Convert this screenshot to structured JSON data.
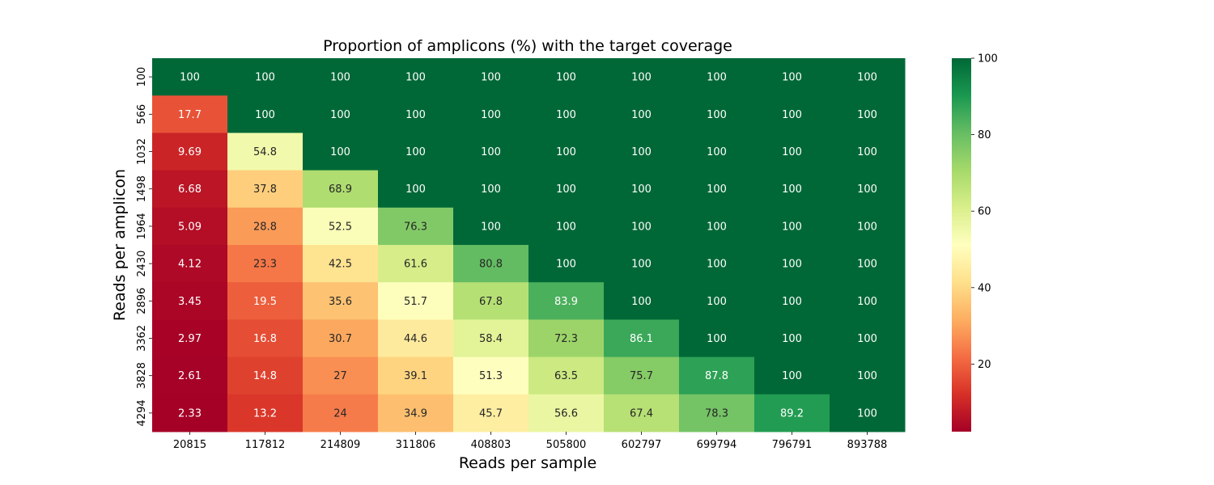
{
  "chart_data": {
    "type": "heatmap",
    "title": "Proportion of amplicons (%) with the target coverage",
    "xlabel": "Reads per sample",
    "ylabel": "Reads per amplicon",
    "x_categories": [
      "20815",
      "117812",
      "214809",
      "311806",
      "408803",
      "505800",
      "602797",
      "699794",
      "796791",
      "893788"
    ],
    "y_categories": [
      "100",
      "566",
      "1032",
      "1498",
      "1964",
      "2430",
      "2896",
      "3362",
      "3828",
      "4294"
    ],
    "values": [
      [
        100,
        100,
        100,
        100,
        100,
        100,
        100,
        100,
        100,
        100
      ],
      [
        17.7,
        100,
        100,
        100,
        100,
        100,
        100,
        100,
        100,
        100
      ],
      [
        9.69,
        54.8,
        100,
        100,
        100,
        100,
        100,
        100,
        100,
        100
      ],
      [
        6.68,
        37.8,
        68.9,
        100,
        100,
        100,
        100,
        100,
        100,
        100
      ],
      [
        5.09,
        28.8,
        52.5,
        76.3,
        100,
        100,
        100,
        100,
        100,
        100
      ],
      [
        4.12,
        23.3,
        42.5,
        61.6,
        80.8,
        100,
        100,
        100,
        100,
        100
      ],
      [
        3.45,
        19.5,
        35.6,
        51.7,
        67.8,
        83.9,
        100,
        100,
        100,
        100
      ],
      [
        2.97,
        16.8,
        30.7,
        44.6,
        58.4,
        72.3,
        86.1,
        100,
        100,
        100
      ],
      [
        2.61,
        14.8,
        27,
        39.1,
        51.3,
        63.5,
        75.7,
        87.8,
        100,
        100
      ],
      [
        2.33,
        13.2,
        24,
        34.9,
        45.7,
        56.6,
        67.4,
        78.3,
        89.2,
        100
      ]
    ],
    "value_labels": [
      [
        "100",
        "100",
        "100",
        "100",
        "100",
        "100",
        "100",
        "100",
        "100",
        "100"
      ],
      [
        "17.7",
        "100",
        "100",
        "100",
        "100",
        "100",
        "100",
        "100",
        "100",
        "100"
      ],
      [
        "9.69",
        "54.8",
        "100",
        "100",
        "100",
        "100",
        "100",
        "100",
        "100",
        "100"
      ],
      [
        "6.68",
        "37.8",
        "68.9",
        "100",
        "100",
        "100",
        "100",
        "100",
        "100",
        "100"
      ],
      [
        "5.09",
        "28.8",
        "52.5",
        "76.3",
        "100",
        "100",
        "100",
        "100",
        "100",
        "100"
      ],
      [
        "4.12",
        "23.3",
        "42.5",
        "61.6",
        "80.8",
        "100",
        "100",
        "100",
        "100",
        "100"
      ],
      [
        "3.45",
        "19.5",
        "35.6",
        "51.7",
        "67.8",
        "83.9",
        "100",
        "100",
        "100",
        "100"
      ],
      [
        "2.97",
        "16.8",
        "30.7",
        "44.6",
        "58.4",
        "72.3",
        "86.1",
        "100",
        "100",
        "100"
      ],
      [
        "2.61",
        "14.8",
        "27",
        "39.1",
        "51.3",
        "63.5",
        "75.7",
        "87.8",
        "100",
        "100"
      ],
      [
        "2.33",
        "13.2",
        "24",
        "34.9",
        "45.7",
        "56.6",
        "67.4",
        "78.3",
        "89.2",
        "100"
      ]
    ],
    "colormap": "RdYlGn",
    "vmin": 2.33,
    "vmax": 100,
    "colorbar_ticks": [
      "20",
      "40",
      "60",
      "80",
      "100"
    ],
    "colorbar_tick_values": [
      20,
      40,
      60,
      80,
      100
    ],
    "grid": false,
    "legend": "colorbar-right"
  }
}
